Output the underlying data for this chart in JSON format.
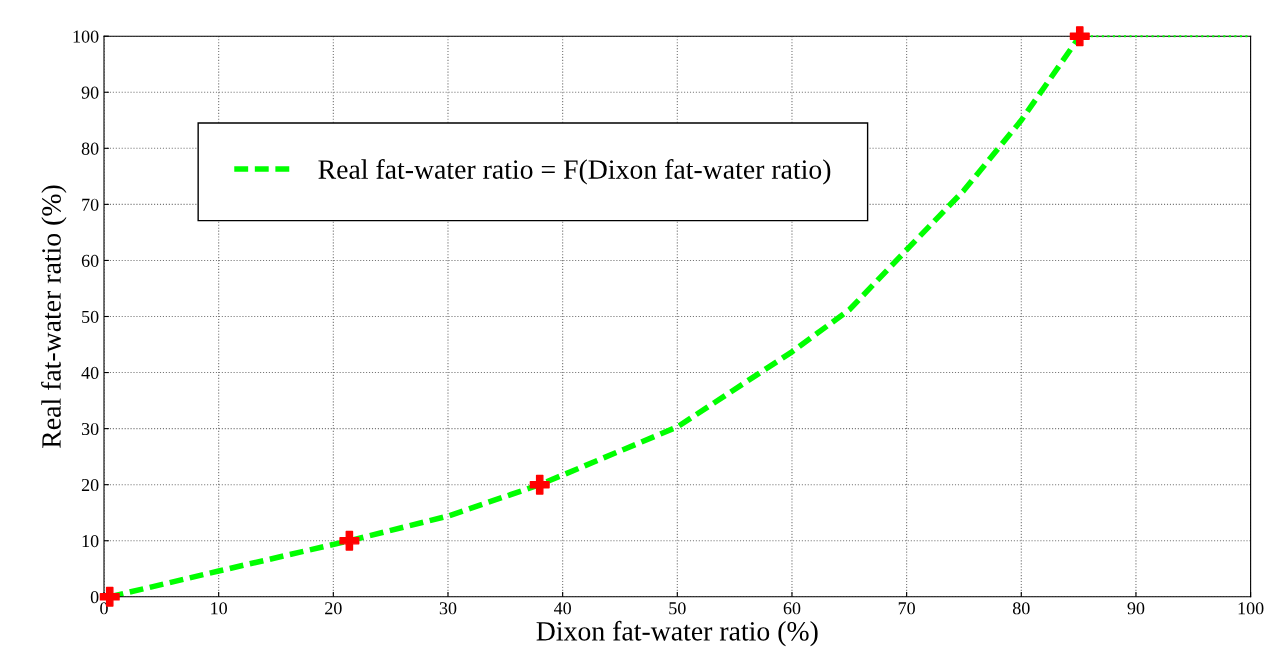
{
  "chart_data": {
    "type": "line",
    "xlabel": "Dixon fat-water ratio (%)",
    "ylabel": "Real fat-water ratio (%)",
    "xlim": [
      0,
      100
    ],
    "ylim": [
      0,
      100
    ],
    "xticks": [
      0,
      10,
      20,
      30,
      40,
      50,
      60,
      70,
      80,
      90,
      100
    ],
    "yticks": [
      0,
      10,
      20,
      30,
      40,
      50,
      60,
      70,
      80,
      90,
      100
    ],
    "grid": true,
    "legend": "top left",
    "series": [
      {
        "name": "Real fat-water ratio = F(Dixon fat-water ratio)",
        "color": "#00ff00",
        "line_style": "dashed",
        "x": [
          0.5,
          10,
          21.4,
          30,
          38,
          50,
          60,
          65,
          70,
          75,
          80,
          85.1
        ],
        "values": [
          0,
          4.6,
          10,
          14.4,
          20,
          30.3,
          43.7,
          51.2,
          61.9,
          72.5,
          85,
          100
        ]
      },
      {
        "color": "#00ff00",
        "line_style": "dotted",
        "x": [
          85.1,
          100
        ],
        "values": [
          100,
          100
        ]
      },
      {
        "type": "scatter",
        "color": "#ff0000",
        "marker": "cross",
        "x": [
          0.5,
          21.4,
          38,
          85.1
        ],
        "values": [
          0,
          10,
          20,
          100
        ]
      }
    ]
  }
}
